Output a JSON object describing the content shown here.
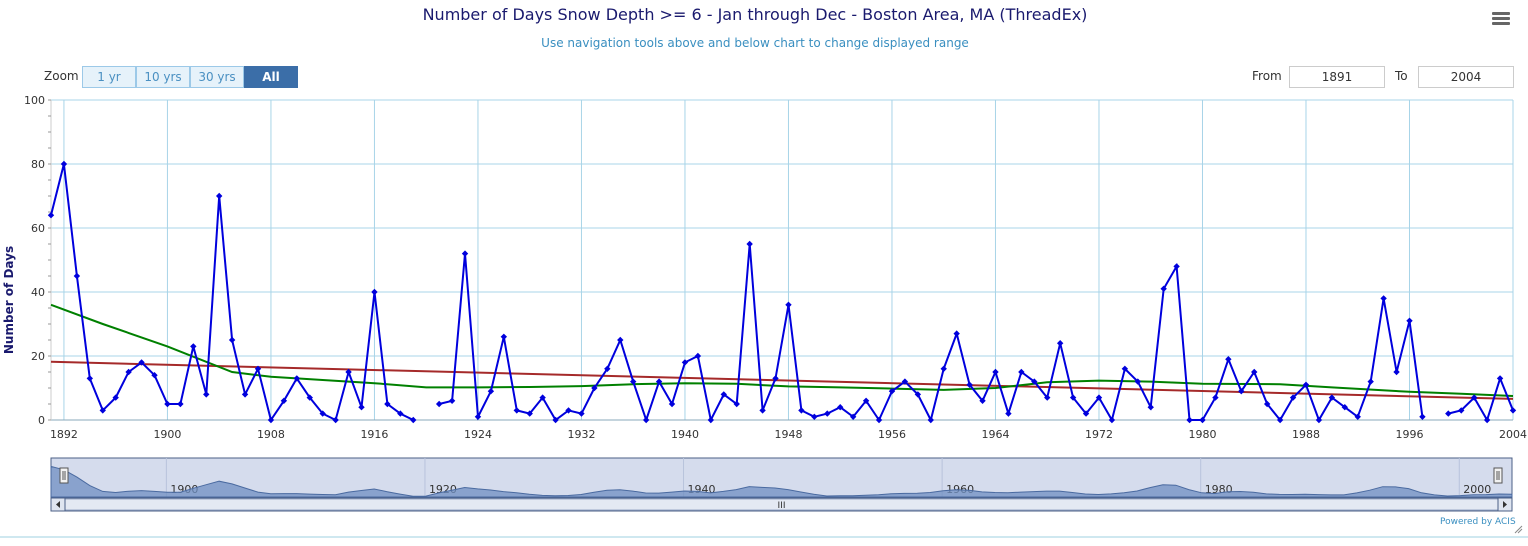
{
  "header": {
    "title": "Number of Days Snow Depth >= 6 - Jan through Dec - Boston Area, MA (ThreadEx)",
    "subtitle": "Use navigation tools above and below chart to change displayed range",
    "menu_icon": "hamburger-menu-icon"
  },
  "zoom": {
    "label": "Zoom",
    "buttons": [
      "1 yr",
      "10 yrs",
      "30 yrs",
      "All"
    ],
    "active": "All"
  },
  "range": {
    "from_label": "From",
    "from_value": "1891",
    "to_label": "To",
    "to_value": "2004"
  },
  "navigator": {
    "labels": [
      "1900",
      "1920",
      "1940",
      "1960",
      "1980",
      "2000"
    ],
    "handle_icon": "navigator-handle-icon",
    "scroll_left_icon": "scroll-left-arrow-icon",
    "scroll_right_icon": "scroll-right-arrow-icon",
    "scroll_grip": "III"
  },
  "credit": "Powered by ACIS",
  "colors": {
    "series": "#0000dd",
    "trend_smooth": "#008000",
    "trend_linear": "#a52a2a",
    "grid": "#a8d4e8",
    "navigator_fill": "#6f8fc2"
  },
  "chart_data": {
    "type": "line",
    "title": "Number of Days Snow Depth >= 6 - Jan through Dec - Boston Area, MA (ThreadEx)",
    "ylabel": "Number of Days",
    "xlabel": "",
    "xlim": [
      1891,
      2004
    ],
    "ylim": [
      0,
      100
    ],
    "x_ticks": [
      1892,
      1900,
      1908,
      1916,
      1924,
      1932,
      1940,
      1948,
      1956,
      1964,
      1972,
      1980,
      1988,
      1996,
      2004
    ],
    "y_ticks": [
      0,
      20,
      40,
      60,
      80,
      100
    ],
    "grid": true,
    "series": [
      {
        "name": "",
        "style": "line-markers",
        "x": [
          1891,
          1892,
          1893,
          1894,
          1895,
          1896,
          1897,
          1898,
          1899,
          1900,
          1901,
          1902,
          1903,
          1904,
          1905,
          1906,
          1907,
          1908,
          1909,
          1910,
          1911,
          1912,
          1913,
          1914,
          1915,
          1916,
          1917,
          1918,
          1919,
          1920,
          1921,
          1922,
          1923,
          1924,
          1925,
          1926,
          1927,
          1928,
          1929,
          1930,
          1931,
          1932,
          1933,
          1934,
          1935,
          1936,
          1937,
          1938,
          1939,
          1940,
          1941,
          1942,
          1943,
          1944,
          1945,
          1946,
          1947,
          1948,
          1949,
          1950,
          1951,
          1952,
          1953,
          1954,
          1955,
          1956,
          1957,
          1958,
          1959,
          1960,
          1961,
          1962,
          1963,
          1964,
          1965,
          1966,
          1967,
          1968,
          1969,
          1970,
          1971,
          1972,
          1973,
          1974,
          1975,
          1976,
          1977,
          1978,
          1979,
          1980,
          1981,
          1982,
          1983,
          1984,
          1985,
          1986,
          1987,
          1988,
          1989,
          1990,
          1991,
          1992,
          1993,
          1994,
          1995,
          1996,
          1997,
          1998,
          1999,
          2000,
          2001,
          2002,
          2003,
          2004
        ],
        "values": [
          64,
          80,
          45,
          13,
          3,
          7,
          15,
          18,
          14,
          5,
          5,
          23,
          8,
          70,
          25,
          8,
          16,
          0,
          6,
          13,
          7,
          2,
          0,
          15,
          4,
          40,
          5,
          2,
          0,
          null,
          5,
          6,
          52,
          1,
          9,
          26,
          3,
          2,
          7,
          0,
          3,
          2,
          10,
          16,
          25,
          12,
          0,
          12,
          5,
          18,
          20,
          0,
          8,
          5,
          55,
          3,
          13,
          36,
          3,
          1,
          2,
          4,
          1,
          6,
          0,
          9,
          12,
          8,
          0,
          16,
          27,
          11,
          6,
          15,
          2,
          15,
          12,
          7,
          24,
          7,
          2,
          7,
          0,
          16,
          12,
          4,
          41,
          48,
          0,
          0,
          7,
          19,
          9,
          15,
          5,
          0,
          7,
          11,
          0,
          7,
          4,
          1,
          12,
          38,
          15,
          31,
          1,
          null,
          2,
          3,
          7,
          0,
          13,
          3
        ]
      },
      {
        "name": "",
        "style": "smooth-trend",
        "x": [
          1891,
          1895,
          1900,
          1905,
          1908,
          1912,
          1916,
          1920,
          1924,
          1928,
          1932,
          1936,
          1940,
          1944,
          1948,
          1952,
          1956,
          1960,
          1964,
          1968,
          1972,
          1976,
          1980,
          1986,
          1990,
          1996,
          2000,
          2004
        ],
        "values": [
          36,
          30,
          23,
          15,
          13.5,
          12.5,
          11.5,
          10.2,
          10.2,
          10.3,
          10.6,
          11.2,
          11.5,
          11.3,
          10.5,
          10.2,
          9.8,
          9.4,
          10.0,
          11.8,
          12.3,
          12.0,
          11.3,
          11.2,
          10.2,
          8.8,
          8.2,
          7.5
        ]
      },
      {
        "name": "",
        "style": "linear-trend",
        "x": [
          1891,
          2004
        ],
        "values": [
          18.2,
          6.6
        ]
      }
    ]
  }
}
